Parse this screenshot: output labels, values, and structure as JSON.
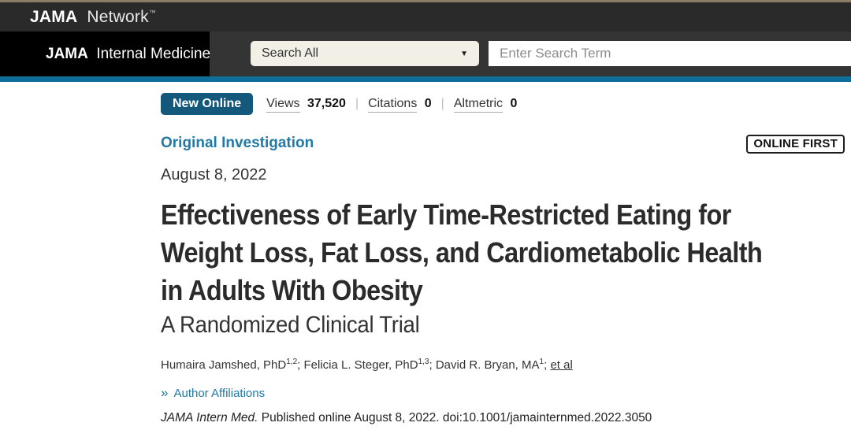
{
  "topbar": {
    "brand_bold": "JAMA",
    "brand_rest": "Network",
    "trademark": "™"
  },
  "journal_bar": {
    "journal_bold": "JAMA",
    "journal_rest": "Internal Medicine"
  },
  "search": {
    "scope_label": "Search All",
    "placeholder": "Enter Search Term",
    "caret": "▼"
  },
  "article": {
    "badge": "New Online",
    "metrics": [
      {
        "label": "Views",
        "value": "37,520"
      },
      {
        "label": "Citations",
        "value": "0"
      },
      {
        "label": "Altmetric",
        "value": "0"
      }
    ],
    "metric_separator": "|",
    "category": "Original Investigation",
    "online_first": "ONLINE FIRST",
    "date": "August 8, 2022",
    "title_lines": [
      "Effectiveness of Early Time-Restricted Eating for",
      "Weight Loss, Fat Loss, and Cardiometabolic Health",
      "in Adults With Obesity"
    ],
    "subtitle": "A Randomized Clinical Trial",
    "authors": [
      {
        "name": "Humaira Jamshed, PhD",
        "sup": "1,2",
        "sep": "; "
      },
      {
        "name": "Felicia L. Steger, PhD",
        "sup": "1,3",
        "sep": "; "
      },
      {
        "name": "David R. Bryan, MA",
        "sup": "1",
        "sep": "; "
      }
    ],
    "et_al": "et al",
    "affiliations_chevron": "»",
    "affiliations_link": "Author Affiliations",
    "citation_journal": "JAMA Intern Med.",
    "citation_rest": " Published online August 8, 2022. doi:10.1001/jamainternmed.2022.3050"
  },
  "colors": {
    "top_strip": "#8d7c68",
    "network_bar": "#2a2a2a",
    "journal_box": "#000000",
    "header_band": "#343434",
    "select_bg": "#f2f0e6",
    "blue_rule": "#0f6f9b",
    "badge_blue": "#14587c",
    "link_teal": "#2079a6",
    "title_text": "#2b2b2b"
  }
}
